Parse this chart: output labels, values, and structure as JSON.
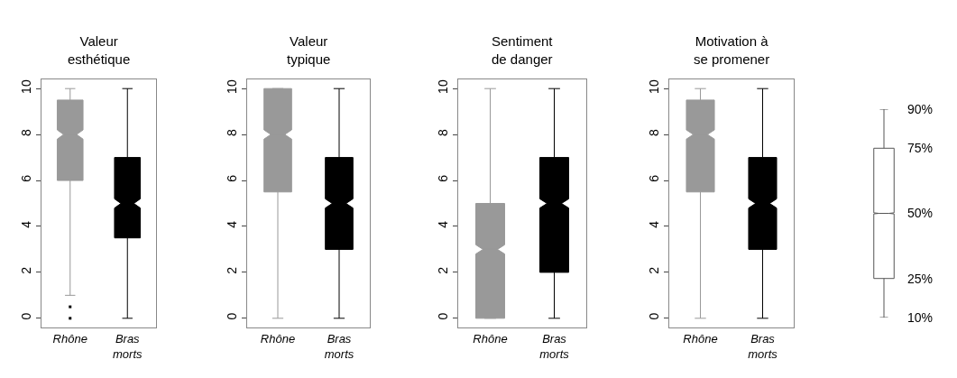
{
  "chart_data": [
    {
      "type": "box",
      "title": "Valeur\nesthétique",
      "categories": [
        "Rhône",
        "Bras\nmorts"
      ],
      "colors": [
        "#999999",
        "#000000"
      ],
      "ylim": [
        -0.4,
        10.4
      ],
      "yticks": [
        0,
        2,
        4,
        6,
        8,
        10
      ],
      "boxes": [
        {
          "low": 1,
          "q1": 6,
          "median": 8,
          "q3": 9.5,
          "high": 10,
          "outliers": [
            0.5,
            0
          ]
        },
        {
          "low": 0,
          "q1": 3.5,
          "median": 5,
          "q3": 7,
          "high": 10
        }
      ]
    },
    {
      "type": "box",
      "title": "Valeur\ntypique",
      "categories": [
        "Rhône",
        "Bras\nmorts"
      ],
      "colors": [
        "#999999",
        "#000000"
      ],
      "ylim": [
        -0.4,
        10.4
      ],
      "yticks": [
        0,
        2,
        4,
        6,
        8,
        10
      ],
      "boxes": [
        {
          "low": 0,
          "q1": 5.5,
          "median": 8,
          "q3": 10,
          "high": 10
        },
        {
          "low": 0,
          "q1": 3,
          "median": 5,
          "q3": 7,
          "high": 10
        }
      ]
    },
    {
      "type": "box",
      "title": "Sentiment\nde danger",
      "categories": [
        "Rhône",
        "Bras\nmorts"
      ],
      "colors": [
        "#999999",
        "#000000"
      ],
      "ylim": [
        -0.4,
        10.4
      ],
      "yticks": [
        0,
        2,
        4,
        6,
        8,
        10
      ],
      "boxes": [
        {
          "low": 0,
          "q1": 0,
          "median": 3,
          "q3": 5,
          "high": 10
        },
        {
          "low": 0,
          "q1": 2,
          "median": 5,
          "q3": 7,
          "high": 10
        }
      ]
    },
    {
      "type": "box",
      "title": "Motivation à\nse promener",
      "categories": [
        "Rhône",
        "Bras\nmorts"
      ],
      "colors": [
        "#999999",
        "#000000"
      ],
      "ylim": [
        -0.4,
        10.4
      ],
      "yticks": [
        0,
        2,
        4,
        6,
        8,
        10
      ],
      "boxes": [
        {
          "low": 0,
          "q1": 5.5,
          "median": 8,
          "q3": 9.5,
          "high": 10
        },
        {
          "low": 0,
          "q1": 3,
          "median": 5,
          "q3": 7,
          "high": 10
        }
      ]
    },
    {
      "type": "box",
      "categories": [
        null
      ],
      "colors": [
        "#ffffff"
      ],
      "ylim": [
        10,
        90
      ],
      "yticks": [
        {
          "value": 10,
          "label": "10%"
        },
        {
          "value": 25,
          "label": "25%"
        },
        {
          "value": 50,
          "label": "50%"
        },
        {
          "value": 75,
          "label": "75%"
        },
        {
          "value": 90,
          "label": "90%"
        }
      ],
      "tick_labels": "y",
      "boxes": [
        {
          "low": 10,
          "q1": 25,
          "median": 50,
          "q3": 75,
          "high": 90
        }
      ]
    }
  ]
}
